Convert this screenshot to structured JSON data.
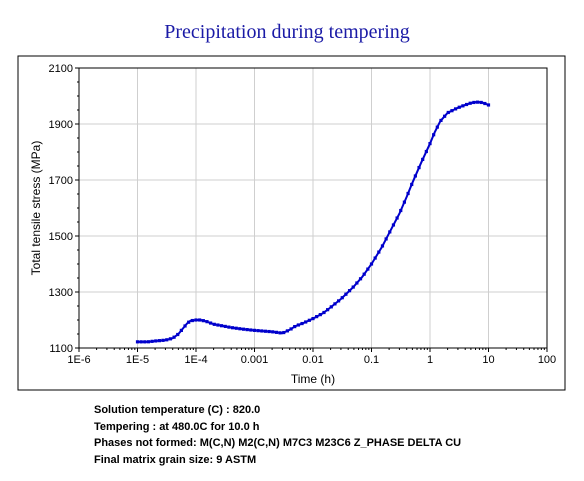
{
  "chart_data": {
    "type": "line",
    "title": "Precipitation during tempering",
    "xlabel": "Time (h)",
    "ylabel": "Total tensile stress (MPa)",
    "x_scale": "log",
    "xlim": [
      1e-06,
      100
    ],
    "ylim": [
      1100,
      2100
    ],
    "x_ticks": [
      "1E-6",
      "1E-5",
      "1E-4",
      "0.001",
      "0.01",
      "0.1",
      "1",
      "10",
      "100"
    ],
    "y_ticks": [
      "1100",
      "1300",
      "1500",
      "1700",
      "1900",
      "2100"
    ],
    "grid": true,
    "series_color": "#0000cc",
    "series": [
      {
        "x": [
          1e-05,
          1.5e-05,
          2e-05,
          3e-05,
          4e-05,
          5e-05,
          6e-05,
          7e-05,
          8e-05,
          0.0001,
          0.00012,
          0.00015,
          0.0002,
          0.0003,
          0.0004,
          0.0006,
          0.0008,
          0.001,
          0.0015,
          0.002,
          0.003,
          0.004,
          0.005,
          0.007,
          0.01,
          0.015,
          0.02,
          0.03,
          0.04,
          0.05,
          0.07,
          0.1,
          0.15,
          0.2,
          0.3,
          0.4,
          0.5,
          0.7,
          1,
          1.2,
          1.5,
          2,
          3,
          4,
          5,
          6,
          7,
          8,
          10
        ],
        "y": [
          1122,
          1122,
          1125,
          1128,
          1135,
          1150,
          1170,
          1187,
          1197,
          1200,
          1200,
          1195,
          1185,
          1178,
          1173,
          1168,
          1165,
          1163,
          1160,
          1158,
          1153,
          1165,
          1178,
          1190,
          1205,
          1225,
          1245,
          1275,
          1300,
          1320,
          1355,
          1400,
          1460,
          1510,
          1580,
          1640,
          1690,
          1760,
          1830,
          1870,
          1910,
          1940,
          1958,
          1968,
          1975,
          1978,
          1978,
          1976,
          1968
        ]
      }
    ]
  },
  "notes": {
    "solution_temperature": "Solution temperature (C) : 820.0",
    "tempering": "Tempering : at 480.0C for 10.0 h",
    "phases_not_formed": "Phases not formed: M(C,N) M2(C,N) M7C3 M23C6 Z_PHASE DELTA CU",
    "grain_size": "Final matrix grain size: 9 ASTM"
  }
}
